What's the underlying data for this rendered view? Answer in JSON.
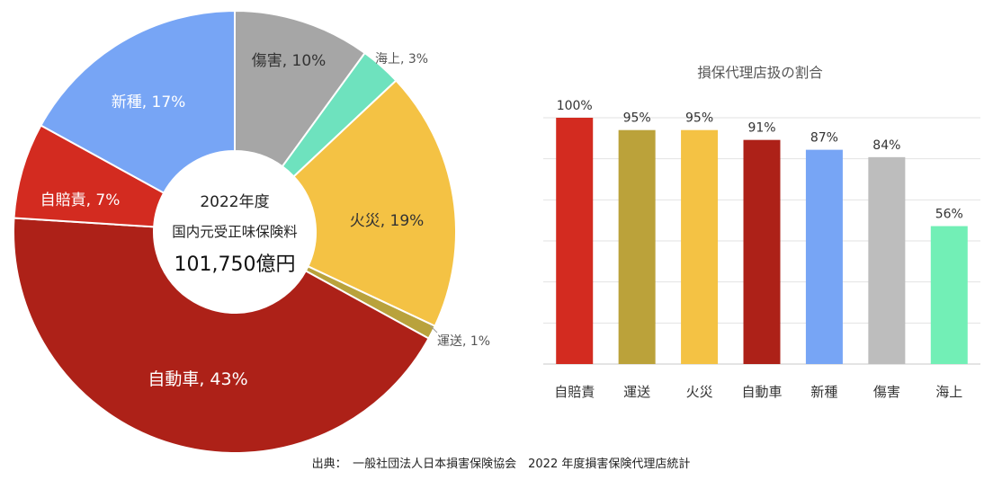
{
  "chart_data": [
    {
      "type": "pie",
      "donut": true,
      "center_text": [
        "2022年度",
        "国内元受正味保険料",
        "101,750億円"
      ],
      "slices": [
        {
          "label": "傷害",
          "value": 10,
          "display": "傷害, 10%",
          "color": "#a6a6a6",
          "label_color": "#333333"
        },
        {
          "label": "海上",
          "value": 3,
          "display": "海上, 3%",
          "color": "#6ee2be",
          "label_color": "#555555"
        },
        {
          "label": "火災",
          "value": 19,
          "display": "火災, 19%",
          "color": "#f4c244",
          "label_color": "#333333"
        },
        {
          "label": "運送",
          "value": 1,
          "display": "運送, 1%",
          "color": "#b9a23c",
          "label_color": "#555555"
        },
        {
          "label": "自動車",
          "value": 43,
          "display": "自動車, 43%",
          "color": "#ad2118",
          "label_color": "#ffffff"
        },
        {
          "label": "自賠責",
          "value": 7,
          "display": "自賠責, 7%",
          "color": "#d32b20",
          "label_color": "#ffffff"
        },
        {
          "label": "新種",
          "value": 17,
          "display": "新種, 17%",
          "color": "#77a5f5",
          "label_color": "#ffffff"
        }
      ]
    },
    {
      "type": "bar",
      "title": "損保代理店扱の割合",
      "categories": [
        "自賠責",
        "運送",
        "火災",
        "自動車",
        "新種",
        "傷害",
        "海上"
      ],
      "values": [
        100,
        95,
        95,
        91,
        87,
        84,
        56
      ],
      "value_labels": [
        "100%",
        "95%",
        "95%",
        "91%",
        "87%",
        "84%",
        "56%"
      ],
      "colors": [
        "#d32b20",
        "#bba23a",
        "#f4c244",
        "#ad2118",
        "#77a5f5",
        "#bdbdbd",
        "#72efb6"
      ],
      "ylim": [
        0,
        100
      ],
      "grid": true
    }
  ],
  "source": "出典：　一般社団法人日本損害保険協会　2022 年度損害保険代理店統計"
}
